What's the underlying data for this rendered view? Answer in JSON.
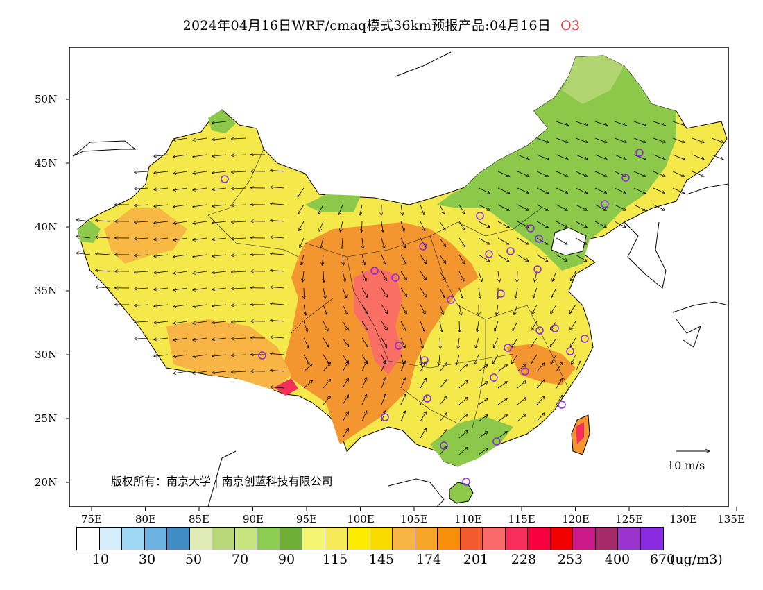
{
  "header": {
    "title": "2024年04月16日WRF/cmaq模式36km预报产品:04月16日",
    "pollutant": "O3"
  },
  "map": {
    "region": "China",
    "lat_labels": [
      "50N",
      "45N",
      "40N",
      "35N",
      "30N",
      "25N",
      "20N"
    ],
    "lon_labels": [
      "75E",
      "80E",
      "85E",
      "90E",
      "95E",
      "100E",
      "105E",
      "110E",
      "115E",
      "120E",
      "125E",
      "130E",
      "135E"
    ],
    "copyright": "版权所有：南京大学 | 南京创蓝科技有限公司",
    "vector_reference": "10 m/s",
    "field_colors": {
      "background_land": "#f5e84a",
      "low_green": "#8cc84a",
      "mid_yellow": "#f9e01c",
      "high_orange": "#f49630",
      "peak_red": "#e8455a",
      "station_marker": "#8a2be2"
    }
  },
  "colorbar": {
    "colors": [
      "#ffffff",
      "#d5eefb",
      "#9fd8f5",
      "#6bb2e0",
      "#3f8bc4",
      "#dfeab5",
      "#b9d87a",
      "#c8e47e",
      "#8ccc50",
      "#6fae35",
      "#f4f570",
      "#f7ea58",
      "#fced00",
      "#fadb00",
      "#f8b444",
      "#f8a628",
      "#f88e09",
      "#f35a30",
      "#fb6a6a",
      "#f82e5a",
      "#f80040",
      "#f00000",
      "#cc1a8a",
      "#a52a6a",
      "#9a32cd",
      "#8a2be2"
    ],
    "labels": [
      "10",
      "30",
      "50",
      "70",
      "90",
      "115",
      "145",
      "174",
      "201",
      "228",
      "253",
      "400",
      "670"
    ],
    "unit": "(ug/m3)"
  }
}
